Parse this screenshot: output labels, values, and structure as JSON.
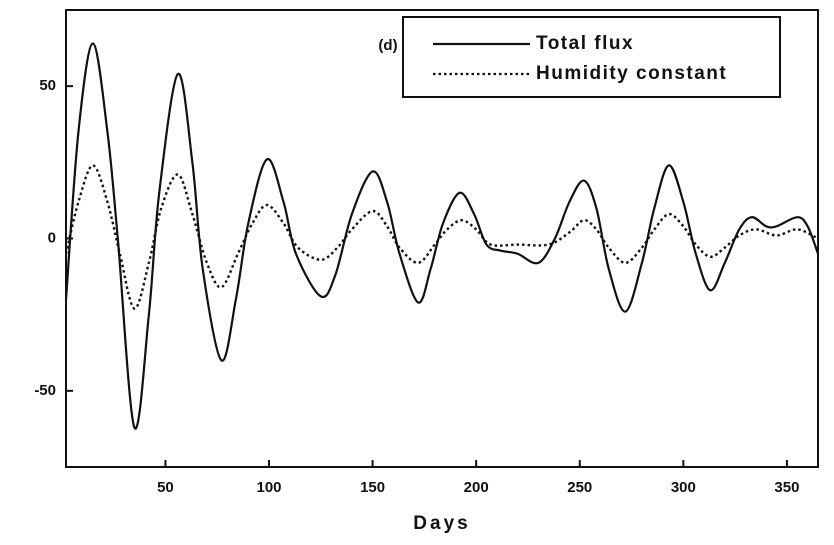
{
  "chart_data": {
    "type": "line",
    "annotation": "(d)",
    "x_label": "Days",
    "xlim": [
      2,
      365
    ],
    "xticks": [
      50,
      100,
      150,
      200,
      250,
      300,
      350
    ],
    "ylim": [
      -75,
      75
    ],
    "yticks": [
      -50,
      0,
      50
    ],
    "legend": "top-right",
    "series": [
      {
        "name": "Total flux",
        "color": "#111111",
        "style": "solid",
        "x": [
          2,
          8,
          15,
          22,
          27,
          35,
          42,
          47,
          56,
          63,
          68,
          77,
          84,
          90,
          99,
          107,
          113,
          125,
          132,
          140,
          150,
          157,
          163,
          172,
          178,
          184,
          192,
          199,
          205,
          212,
          220,
          230,
          238,
          245,
          252,
          258,
          264,
          272,
          280,
          286,
          293,
          300,
          306,
          313,
          320,
          327,
          333,
          340,
          345,
          355,
          360,
          365
        ],
        "values": [
          -20,
          35,
          64,
          35,
          0,
          -62,
          -25,
          15,
          54,
          25,
          -10,
          -40,
          -20,
          5,
          26,
          12,
          -5,
          -19,
          -12,
          8,
          22,
          12,
          -5,
          -21,
          -10,
          5,
          15,
          8,
          -2,
          -4,
          -5,
          -8,
          0,
          12,
          19,
          10,
          -10,
          -24,
          -8,
          10,
          24,
          12,
          -5,
          -17,
          -8,
          3,
          7,
          4,
          4,
          7,
          4,
          -5
        ]
      },
      {
        "name": "Humidity constant",
        "color": "#111111",
        "style": "dotted",
        "x": [
          2,
          8,
          15,
          22,
          28,
          35,
          42,
          48,
          56,
          63,
          70,
          77,
          85,
          92,
          99,
          107,
          114,
          125,
          133,
          140,
          150,
          157,
          163,
          172,
          180,
          186,
          193,
          200,
          207,
          220,
          235,
          245,
          252,
          258,
          264,
          272,
          280,
          286,
          293,
          300,
          306,
          313,
          320,
          327,
          335,
          345,
          355,
          365
        ],
        "values": [
          -5,
          12,
          24,
          12,
          -5,
          -23,
          -8,
          10,
          21,
          8,
          -8,
          -16,
          -5,
          5,
          11,
          5,
          -3,
          -7,
          -3,
          3,
          9,
          4,
          -3,
          -8,
          -2,
          3,
          6,
          3,
          -2,
          -2,
          -2,
          2,
          6,
          3,
          -3,
          -8,
          -3,
          3,
          8,
          4,
          -2,
          -6,
          -3,
          1,
          3,
          1,
          3,
          0
        ]
      }
    ]
  }
}
